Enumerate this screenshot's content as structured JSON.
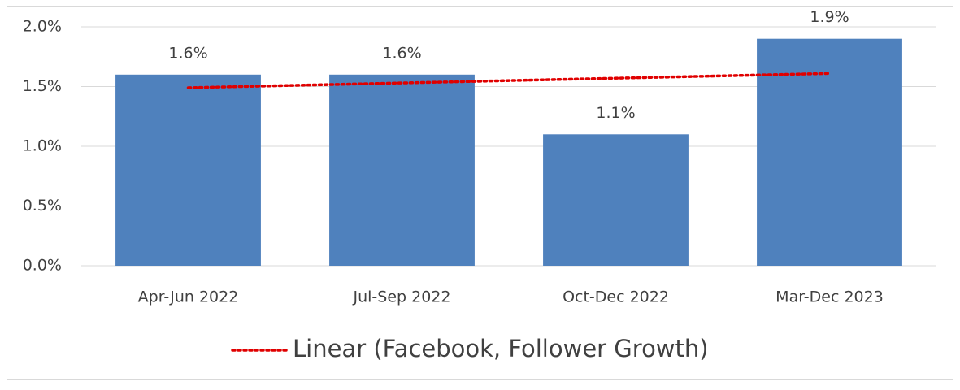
{
  "chart_data": {
    "type": "bar",
    "categories": [
      "Apr-Jun 2022",
      "Jul-Sep 2022",
      "Oct-Dec 2022",
      "Mar-Dec 2023"
    ],
    "values": [
      1.6,
      1.6,
      1.1,
      1.9
    ],
    "value_labels": [
      "1.6%",
      "1.6%",
      "1.1%",
      "1.9%"
    ],
    "color": "#4f81bd",
    "ylim": [
      0,
      2.0
    ],
    "yticks": [
      {
        "value": 0,
        "label": "0.0%"
      },
      {
        "value": 0.5,
        "label": "0.5%"
      },
      {
        "value": 1.0,
        "label": "1.0%"
      },
      {
        "value": 1.5,
        "label": "1.5%"
      },
      {
        "value": 2.0,
        "label": "2.0%"
      }
    ],
    "grid": true,
    "trendline": {
      "name": "Linear (Facebook, Follower Growth)",
      "kind": "linear",
      "color": "#e00000"
    },
    "legend": "bottom"
  }
}
